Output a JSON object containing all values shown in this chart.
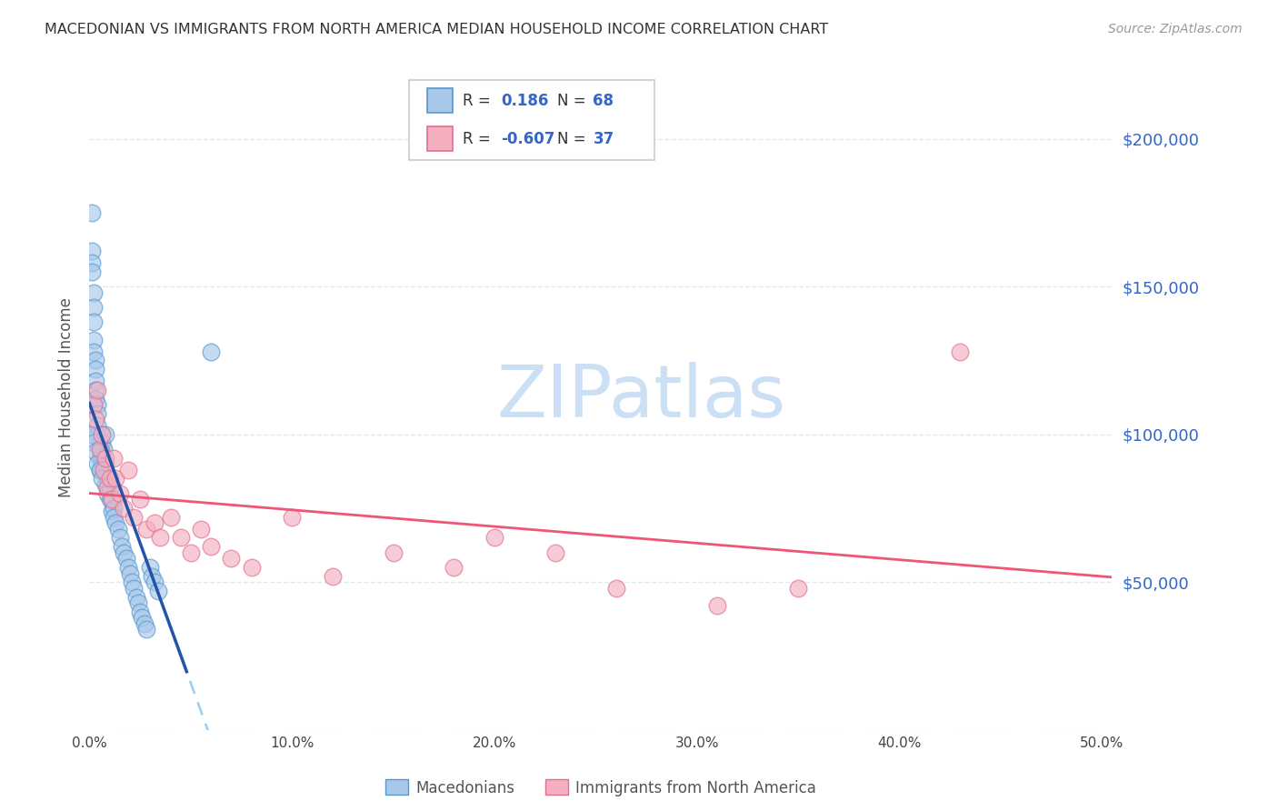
{
  "title": "MACEDONIAN VS IMMIGRANTS FROM NORTH AMERICA MEDIAN HOUSEHOLD INCOME CORRELATION CHART",
  "source": "Source: ZipAtlas.com",
  "ylabel": "Median Household Income",
  "xlim": [
    0.0,
    0.505
  ],
  "ylim": [
    0,
    225000
  ],
  "yticks": [
    0,
    50000,
    100000,
    150000,
    200000
  ],
  "ytick_labels": [
    "",
    "$50,000",
    "$100,000",
    "$150,000",
    "$200,000"
  ],
  "xticks": [
    0.0,
    0.1,
    0.2,
    0.3,
    0.4,
    0.5
  ],
  "xtick_labels": [
    "0.0%",
    "10.0%",
    "20.0%",
    "30.0%",
    "40.0%",
    "50.0%"
  ],
  "blue_color": "#a8c8ea",
  "pink_color": "#f4b0c0",
  "blue_edge_color": "#5599cc",
  "pink_edge_color": "#e07090",
  "blue_line_color": "#2255aa",
  "pink_line_color": "#ee5577",
  "dashed_line_color": "#99ccee",
  "watermark_color": "#cce0f5",
  "background_color": "#ffffff",
  "grid_color": "#ddeaf5",
  "macedonians_label": "Macedonians",
  "immigrants_label": "Immigrants from North America",
  "blue_x": [
    0.001,
    0.001,
    0.001,
    0.001,
    0.002,
    0.002,
    0.002,
    0.002,
    0.002,
    0.003,
    0.003,
    0.003,
    0.003,
    0.003,
    0.004,
    0.004,
    0.004,
    0.004,
    0.005,
    0.005,
    0.005,
    0.005,
    0.006,
    0.006,
    0.006,
    0.006,
    0.007,
    0.007,
    0.007,
    0.008,
    0.008,
    0.008,
    0.009,
    0.009,
    0.01,
    0.01,
    0.011,
    0.011,
    0.012,
    0.012,
    0.013,
    0.014,
    0.015,
    0.016,
    0.017,
    0.018,
    0.019,
    0.02,
    0.021,
    0.022,
    0.023,
    0.024,
    0.025,
    0.026,
    0.027,
    0.028,
    0.03,
    0.031,
    0.032,
    0.034,
    0.001,
    0.002,
    0.003,
    0.004,
    0.005,
    0.006,
    0.008,
    0.06
  ],
  "blue_y": [
    175000,
    162000,
    158000,
    155000,
    148000,
    143000,
    138000,
    132000,
    128000,
    125000,
    122000,
    118000,
    115000,
    112000,
    110000,
    107000,
    103000,
    100000,
    97000,
    95000,
    92000,
    88000,
    100000,
    97000,
    94000,
    90000,
    95000,
    92000,
    88000,
    90000,
    87000,
    83000,
    85000,
    80000,
    82000,
    78000,
    78000,
    74000,
    75000,
    72000,
    70000,
    68000,
    65000,
    62000,
    60000,
    58000,
    55000,
    53000,
    50000,
    48000,
    45000,
    43000,
    40000,
    38000,
    36000,
    34000,
    55000,
    52000,
    50000,
    47000,
    100000,
    97000,
    94000,
    90000,
    88000,
    85000,
    100000,
    128000
  ],
  "pink_x": [
    0.002,
    0.003,
    0.004,
    0.005,
    0.006,
    0.007,
    0.008,
    0.009,
    0.01,
    0.011,
    0.012,
    0.013,
    0.015,
    0.017,
    0.019,
    0.022,
    0.025,
    0.028,
    0.032,
    0.035,
    0.04,
    0.045,
    0.05,
    0.055,
    0.06,
    0.07,
    0.08,
    0.1,
    0.12,
    0.15,
    0.18,
    0.2,
    0.23,
    0.26,
    0.31,
    0.35,
    0.43
  ],
  "pink_y": [
    110000,
    105000,
    115000,
    95000,
    100000,
    88000,
    92000,
    82000,
    85000,
    78000,
    92000,
    85000,
    80000,
    75000,
    88000,
    72000,
    78000,
    68000,
    70000,
    65000,
    72000,
    65000,
    60000,
    68000,
    62000,
    58000,
    55000,
    72000,
    52000,
    60000,
    55000,
    65000,
    60000,
    48000,
    42000,
    48000,
    128000
  ],
  "blue_solid_xlim": [
    0.0,
    0.048
  ],
  "pink_line_xlim": [
    0.0,
    0.505
  ],
  "dashed_xlim": [
    0.042,
    0.505
  ]
}
